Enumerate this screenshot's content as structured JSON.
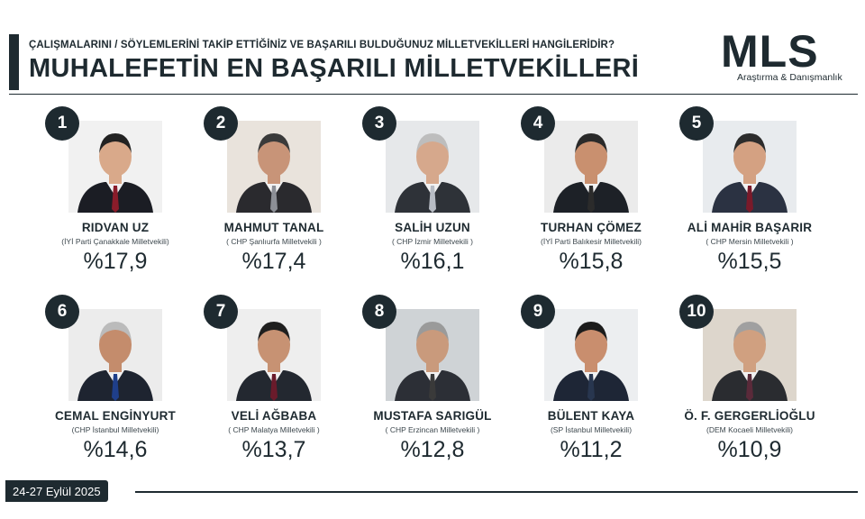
{
  "header": {
    "subtitle": "ÇALIŞMALARINI / SÖYLEMLERİNİ TAKİP ETTİĞİNİZ VE BAŞARILI BULDUĞUNUZ MİLLETVEKİLLERİ HANGİLERİDİR?",
    "title": "MUHALEFETİN EN BAŞARILI MİLLETVEKİLLERİ"
  },
  "logo": {
    "main": "MLS",
    "sub": "Araştırma & Danışmanlık"
  },
  "colors": {
    "primary": "#1e2a30",
    "background": "#ffffff"
  },
  "deputies": [
    {
      "rank": "1",
      "name": "RIDVAN UZ",
      "party": "(İYİ Parti Çanakkale Milletvekili)",
      "percent": "%17,9"
    },
    {
      "rank": "2",
      "name": "MAHMUT TANAL",
      "party": "( CHP Şanlıurfa Milletvekili )",
      "percent": "%17,4"
    },
    {
      "rank": "3",
      "name": "SALİH UZUN",
      "party": "( CHP İzmir Milletvekili )",
      "percent": "%16,1"
    },
    {
      "rank": "4",
      "name": "TURHAN ÇÖMEZ",
      "party": "(İYİ Parti Balıkesir Milletvekili)",
      "percent": "%15,8"
    },
    {
      "rank": "5",
      "name": "ALİ MAHİR BAŞARIR",
      "party": "( CHP Mersin Milletvekili )",
      "percent": "%15,5"
    },
    {
      "rank": "6",
      "name": "CEMAL ENGİNYURT",
      "party": "(CHP İstanbul Milletvekili)",
      "percent": "%14,6"
    },
    {
      "rank": "7",
      "name": "VELİ AĞBABA",
      "party": "( CHP Malatya Milletvekili )",
      "percent": "%13,7"
    },
    {
      "rank": "8",
      "name": "MUSTAFA SARIGÜL",
      "party": "( CHP Erzincan Milletvekili )",
      "percent": "%12,8"
    },
    {
      "rank": "9",
      "name": "BÜLENT KAYA",
      "party": "(SP İstanbul Milletvekili)",
      "percent": "%11,2"
    },
    {
      "rank": "10",
      "name": "Ö. F. GERGERLİOĞLU",
      "party": "(DEM Kocaeli Milletvekili)",
      "percent": "%10,9"
    }
  ],
  "footer": {
    "date": "24-27 Eylül 2025"
  }
}
